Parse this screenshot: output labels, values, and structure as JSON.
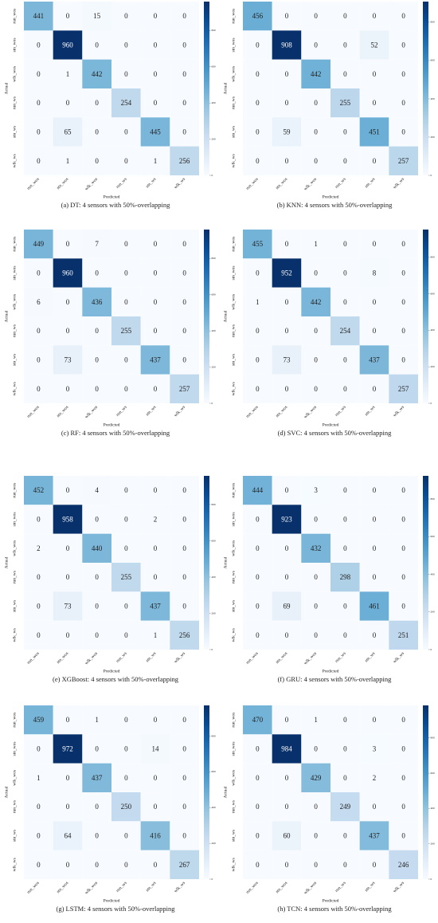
{
  "chart_data": [
    {
      "type": "heatmap",
      "caption": "(a) DT: 4 sensors with 50%-overlapping",
      "xlabel": "Predicted",
      "ylabel": "Actual",
      "categories": [
        "run_wos",
        "stn_wos",
        "wlk_wos",
        "run_ws",
        "stn_ws",
        "wlk_ws"
      ],
      "y_categories": [
        "run_wos",
        "stn_wos",
        "wlk_wos",
        "run_ws",
        "stn_ws",
        "wlk_ws"
      ],
      "values": [
        [
          441,
          0,
          15,
          0,
          0,
          0
        ],
        [
          0,
          960,
          0,
          0,
          0,
          0
        ],
        [
          0,
          1,
          442,
          0,
          0,
          0
        ],
        [
          0,
          0,
          0,
          254,
          0,
          0
        ],
        [
          0,
          65,
          0,
          0,
          445,
          0
        ],
        [
          0,
          1,
          0,
          0,
          1,
          256
        ]
      ],
      "zlim": [
        0,
        960
      ],
      "zticks": [
        0,
        200,
        400,
        600,
        800
      ],
      "colormap": "Blues"
    },
    {
      "type": "heatmap",
      "caption": "(b) KNN: 4 sensors with 50%-overlapping",
      "xlabel": "Predicted",
      "ylabel": "Actual",
      "categories": [
        "run_wos",
        "stn_wos",
        "wlk_wos",
        "run_ws",
        "stn_ws",
        "wlk_ws"
      ],
      "y_categories": [
        "run_wos",
        "stn_wos",
        "wlk_wos",
        "run_ws",
        "stn_ws",
        "wlk_ws"
      ],
      "values": [
        [
          456,
          0,
          0,
          0,
          0,
          0
        ],
        [
          0,
          908,
          0,
          0,
          52,
          0
        ],
        [
          0,
          0,
          442,
          0,
          0,
          0
        ],
        [
          0,
          0,
          0,
          255,
          0,
          0
        ],
        [
          0,
          59,
          0,
          0,
          451,
          0
        ],
        [
          0,
          0,
          0,
          0,
          0,
          257
        ]
      ],
      "zlim": [
        0,
        908
      ],
      "zticks": [
        0,
        200,
        400,
        600,
        800
      ],
      "colormap": "Blues"
    },
    {
      "type": "heatmap",
      "caption": "(c) RF: 4 sensors with 50%-overlapping",
      "xlabel": "Predicted",
      "ylabel": "Actual",
      "categories": [
        "run_wos",
        "stn_wos",
        "wlk_wos",
        "run_ws",
        "stn_ws",
        "wlk_ws"
      ],
      "y_categories": [
        "run_wos",
        "stn_wos",
        "wlk_wos",
        "run_ws",
        "stn_ws",
        "wlk_ws"
      ],
      "values": [
        [
          449,
          0,
          7,
          0,
          0,
          0
        ],
        [
          0,
          960,
          0,
          0,
          0,
          0
        ],
        [
          6,
          0,
          436,
          0,
          0,
          0
        ],
        [
          0,
          0,
          0,
          255,
          0,
          0
        ],
        [
          0,
          73,
          0,
          0,
          437,
          0
        ],
        [
          0,
          0,
          0,
          0,
          0,
          257
        ]
      ],
      "zlim": [
        0,
        960
      ],
      "zticks": [
        0,
        200,
        400,
        600,
        800
      ],
      "colormap": "Blues"
    },
    {
      "type": "heatmap",
      "caption": "(d) SVC: 4 sensors with 50%-overlapping",
      "xlabel": "Predicted",
      "ylabel": "Actual",
      "categories": [
        "run_wos",
        "stn_wos",
        "wlk_wos",
        "run_ws",
        "stn_ws",
        "wlk_ws"
      ],
      "y_categories": [
        "run_wos",
        "stn_wos",
        "wlk_wos",
        "run_ws",
        "stn_ws",
        "wlk_ws"
      ],
      "values": [
        [
          455,
          0,
          1,
          0,
          0,
          0
        ],
        [
          0,
          952,
          0,
          0,
          8,
          0
        ],
        [
          1,
          0,
          442,
          0,
          0,
          0
        ],
        [
          0,
          0,
          0,
          254,
          0,
          0
        ],
        [
          0,
          73,
          0,
          0,
          437,
          0
        ],
        [
          0,
          0,
          0,
          0,
          0,
          257
        ]
      ],
      "zlim": [
        0,
        952
      ],
      "zticks": [
        0,
        200,
        400,
        600,
        800
      ],
      "colormap": "Blues"
    },
    {
      "type": "heatmap",
      "caption": "(e) XGBoost: 4 sensors with 50%-overlapping",
      "xlabel": "Predicted",
      "ylabel": "Actual",
      "categories": [
        "run_wos",
        "stn_wos",
        "wlk_wos",
        "run_ws",
        "stn_ws",
        "wlk_ws"
      ],
      "y_categories": [
        "run_wos",
        "stn_wos",
        "wlk_wos",
        "run_ws",
        "stn_ws",
        "wlk_ws"
      ],
      "values": [
        [
          452,
          0,
          4,
          0,
          0,
          0
        ],
        [
          0,
          958,
          0,
          0,
          2,
          0
        ],
        [
          2,
          0,
          440,
          0,
          0,
          0
        ],
        [
          0,
          0,
          0,
          255,
          0,
          0
        ],
        [
          0,
          73,
          0,
          0,
          437,
          0
        ],
        [
          0,
          0,
          0,
          0,
          1,
          256
        ]
      ],
      "zlim": [
        0,
        958
      ],
      "zticks": [
        0,
        200,
        400,
        600,
        800
      ],
      "colormap": "Blues"
    },
    {
      "type": "heatmap",
      "caption": "(f) GRU: 4 sensors with 50%-overlapping",
      "xlabel": "Predicted",
      "ylabel": "Actual",
      "categories": [
        "run_wos",
        "stn_wos",
        "wlk_wos",
        "run_ws",
        "stn_ws",
        "wlk_ws"
      ],
      "y_categories": [
        "run_wos",
        "stn_wos",
        "wlk_wos",
        "run_ws",
        "stn_ws",
        "wlk_ws"
      ],
      "values": [
        [
          444,
          0,
          3,
          0,
          0,
          0
        ],
        [
          0,
          923,
          0,
          0,
          0,
          0
        ],
        [
          0,
          0,
          432,
          0,
          0,
          0
        ],
        [
          0,
          0,
          0,
          298,
          0,
          0
        ],
        [
          0,
          69,
          0,
          0,
          461,
          0
        ],
        [
          0,
          0,
          0,
          0,
          0,
          251
        ]
      ],
      "zlim": [
        0,
        923
      ],
      "zticks": [
        0,
        200,
        400,
        600,
        800
      ],
      "colormap": "Blues"
    },
    {
      "type": "heatmap",
      "caption": "(g) LSTM: 4 sensors with 50%-overlapping",
      "xlabel": "Predicted",
      "ylabel": "Actual",
      "categories": [
        "run_wos",
        "stn_wos",
        "wlk_wos",
        "run_ws",
        "stn_ws",
        "wlk_ws"
      ],
      "y_categories": [
        "run_wos",
        "stn_wos",
        "wlk_wos",
        "run_ws",
        "stn_ws",
        "wlk_ws"
      ],
      "values": [
        [
          459,
          0,
          1,
          0,
          0,
          0
        ],
        [
          0,
          972,
          0,
          0,
          14,
          0
        ],
        [
          1,
          0,
          437,
          0,
          0,
          0
        ],
        [
          0,
          0,
          0,
          250,
          0,
          0
        ],
        [
          0,
          64,
          0,
          0,
          416,
          0
        ],
        [
          0,
          0,
          0,
          0,
          0,
          267
        ]
      ],
      "zlim": [
        0,
        972
      ],
      "zticks": [
        0,
        200,
        400,
        600,
        800
      ],
      "colormap": "Blues"
    },
    {
      "type": "heatmap",
      "caption": "(h) TCN: 4 sensors with 50%-overlapping",
      "xlabel": "Predicted",
      "ylabel": "Actual",
      "categories": [
        "run_wos",
        "stn_wos",
        "wlk_wos",
        "run_ws",
        "stn_ws",
        "wlk_ws"
      ],
      "y_categories": [
        "run_wos",
        "stn_wos",
        "wlk_wos",
        "run_ws",
        "stn_ws",
        "wlk_ws"
      ],
      "values": [
        [
          470,
          0,
          1,
          0,
          0,
          0
        ],
        [
          0,
          984,
          0,
          0,
          3,
          0
        ],
        [
          0,
          0,
          429,
          0,
          2,
          0
        ],
        [
          0,
          0,
          0,
          249,
          0,
          0
        ],
        [
          0,
          60,
          0,
          0,
          437,
          0
        ],
        [
          0,
          0,
          0,
          0,
          0,
          246
        ]
      ],
      "zlim": [
        0,
        984
      ],
      "zticks": [
        0,
        200,
        400,
        600,
        800
      ],
      "colormap": "Blues"
    }
  ]
}
